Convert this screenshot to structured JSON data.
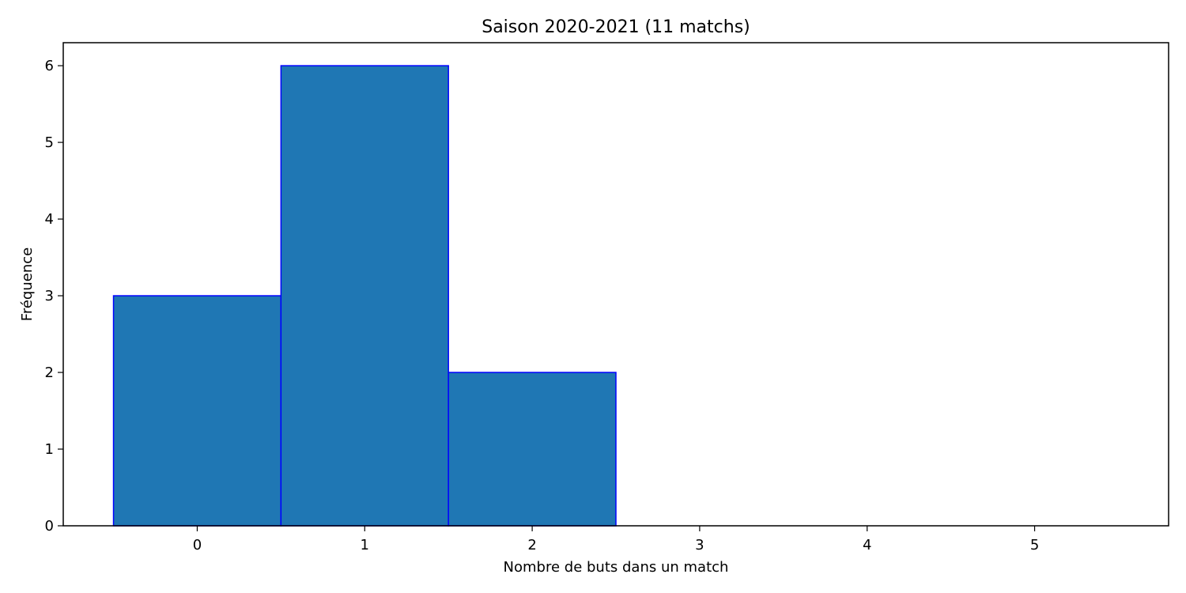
{
  "chart_data": {
    "type": "bar",
    "title": "Saison 2020-2021 (11 matchs)",
    "xlabel": "Nombre de buts dans un match",
    "ylabel": "Fréquence",
    "bins": [
      {
        "label": "0",
        "start": -0.5,
        "end": 0.5,
        "value": 3
      },
      {
        "label": "1",
        "start": 0.5,
        "end": 1.5,
        "value": 6
      },
      {
        "label": "2",
        "start": 1.5,
        "end": 2.5,
        "value": 2
      },
      {
        "label": "3",
        "start": 2.5,
        "end": 3.5,
        "value": 0
      },
      {
        "label": "4",
        "start": 3.5,
        "end": 4.5,
        "value": 0
      },
      {
        "label": "5",
        "start": 4.5,
        "end": 5.5,
        "value": 0
      }
    ],
    "xticks": [
      0,
      1,
      2,
      3,
      4,
      5
    ],
    "yticks": [
      0,
      1,
      2,
      3,
      4,
      5,
      6
    ],
    "xlim": [
      -0.8,
      5.8
    ],
    "ylim": [
      0,
      6.3
    ],
    "grid": false,
    "bar_color": "#1f77b4",
    "edge_color": "#0000ff"
  }
}
